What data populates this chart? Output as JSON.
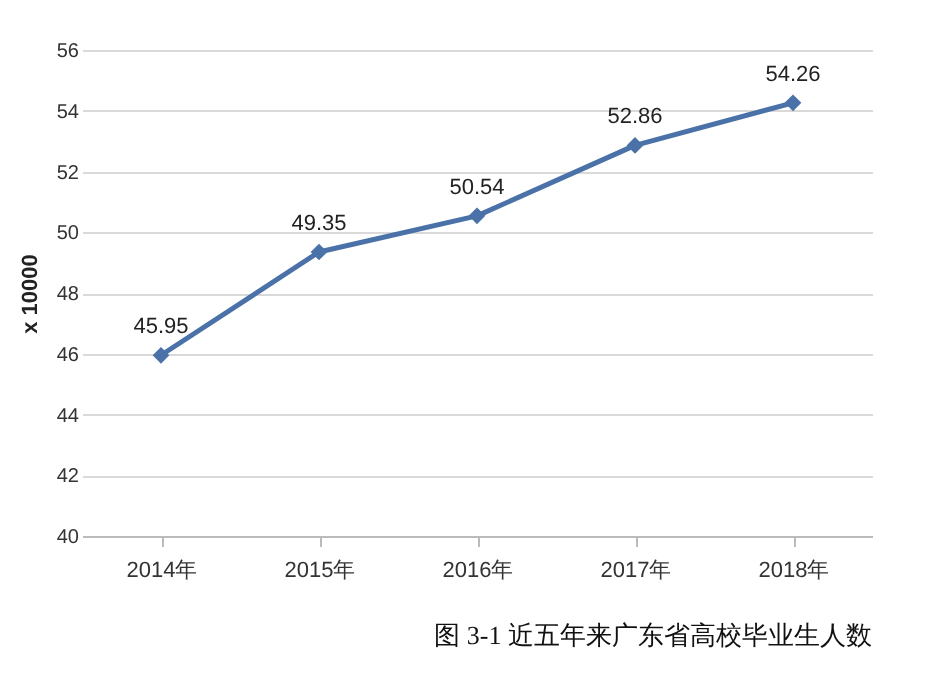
{
  "chart_data": {
    "type": "line",
    "ylabel": "x 10000",
    "categories": [
      "2014年",
      "2015年",
      "2016年",
      "2017年",
      "2018年"
    ],
    "series": [
      {
        "color": "#4a72a8",
        "values": [
          45.95,
          49.35,
          50.54,
          52.86,
          54.26
        ]
      }
    ],
    "ylim": [
      40,
      56
    ],
    "yticks": [
      40,
      42,
      44,
      46,
      48,
      50,
      52,
      54,
      56
    ],
    "grid": "y",
    "marker": "diamond",
    "data_labels": true,
    "annotations": [
      "图 3-1  近五年来广东省高校毕业生人数"
    ]
  }
}
